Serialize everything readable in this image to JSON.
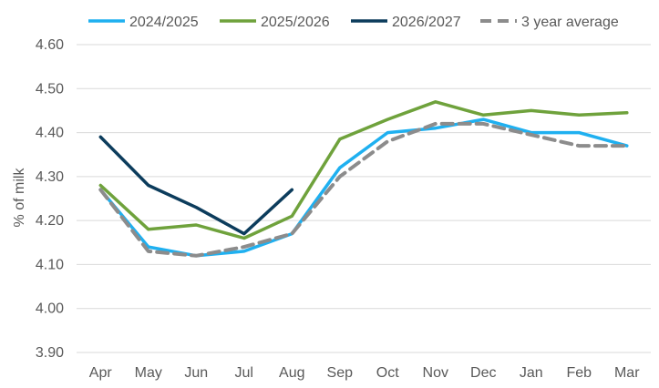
{
  "chart_data": {
    "type": "line",
    "title": "",
    "xlabel": "",
    "ylabel": "% of milk",
    "ylim": [
      3.9,
      4.6
    ],
    "yticks": [
      "4.60",
      "4.50",
      "4.40",
      "4.30",
      "4.20",
      "4.10",
      "4.00",
      "3.90"
    ],
    "ytick_values": [
      4.6,
      4.5,
      4.4,
      4.3,
      4.2,
      4.1,
      4.0,
      3.9
    ],
    "grid": true,
    "legend_position": "top",
    "categories": [
      "Apr",
      "May",
      "Jun",
      "Jul",
      "Aug",
      "Sep",
      "Oct",
      "Nov",
      "Dec",
      "Jan",
      "Feb",
      "Mar"
    ],
    "series": [
      {
        "name": "2024/2025",
        "color": "#1fb0f0",
        "dash": false,
        "values": [
          4.27,
          4.14,
          4.12,
          4.13,
          4.17,
          4.32,
          4.4,
          4.41,
          4.43,
          4.4,
          4.4,
          4.37
        ]
      },
      {
        "name": "2025/2026",
        "color": "#6fa23c",
        "dash": false,
        "values": [
          4.28,
          4.18,
          4.19,
          4.16,
          4.21,
          4.385,
          4.43,
          4.47,
          4.44,
          4.45,
          4.44,
          4.445
        ]
      },
      {
        "name": "2026/2027",
        "color": "#0c3c5c",
        "dash": false,
        "values": [
          4.39,
          4.28,
          4.23,
          4.17,
          4.27,
          null,
          null,
          null,
          null,
          null,
          null,
          null
        ]
      },
      {
        "name": "3 year average",
        "color": "#8c8c8c",
        "dash": true,
        "values": [
          4.27,
          4.13,
          4.12,
          4.14,
          4.17,
          4.3,
          4.38,
          4.42,
          4.42,
          4.395,
          4.37,
          4.37
        ]
      }
    ]
  }
}
